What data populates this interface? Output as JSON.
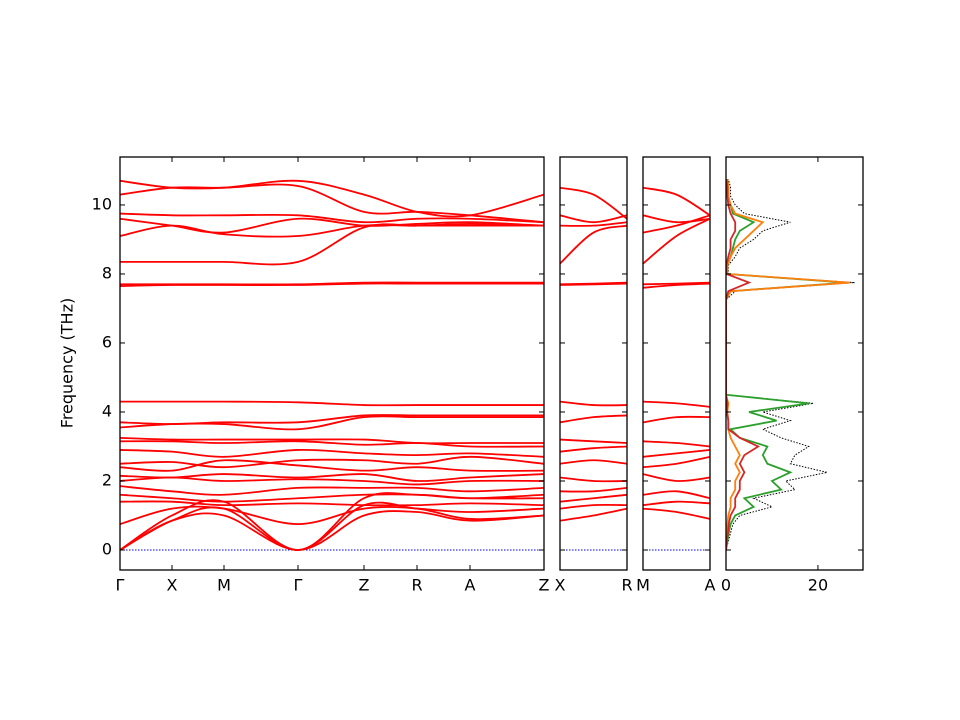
{
  "chart_data": {
    "type": "band_structure",
    "ylabel": "Frequency (THz)",
    "ylim": [
      -0.58,
      11.39
    ],
    "yticks": [
      0,
      2,
      4,
      6,
      8,
      10
    ],
    "baseline": 0,
    "baseline_color": "#0000ff",
    "band_color": "#ff0000",
    "panels": [
      {
        "x": [
          0,
          0.52,
          1.04,
          1.78,
          2.44,
          2.97,
          3.5,
          4.24
        ],
        "xlim": [
          0,
          4.24
        ],
        "xticks": [
          {
            "value": 0,
            "label": "Γ"
          },
          {
            "value": 0.52,
            "label": "X"
          },
          {
            "value": 1.04,
            "label": "M"
          },
          {
            "value": 1.78,
            "label": "Γ"
          },
          {
            "value": 2.44,
            "label": "Z"
          },
          {
            "value": 2.97,
            "label": "R"
          },
          {
            "value": 3.5,
            "label": "A"
          },
          {
            "value": 4.24,
            "label": "Z"
          }
        ],
        "bands": [
          [
            10.7,
            10.5,
            10.5,
            10.7,
            10.3,
            9.8,
            9.7,
            10.3
          ],
          [
            10.3,
            10.5,
            10.5,
            10.55,
            9.8,
            9.8,
            9.7,
            9.5
          ],
          [
            9.75,
            9.7,
            9.7,
            9.7,
            9.5,
            9.6,
            9.6,
            9.5
          ],
          [
            9.6,
            9.4,
            9.2,
            9.6,
            9.4,
            9.45,
            9.5,
            9.4
          ],
          [
            9.1,
            9.4,
            9.15,
            9.1,
            9.4,
            9.4,
            9.45,
            9.4
          ],
          [
            8.35,
            8.35,
            8.35,
            8.35,
            9.35,
            9.4,
            9.4,
            9.4
          ],
          [
            7.7,
            7.7,
            7.7,
            7.7,
            7.75,
            7.75,
            7.75,
            7.75
          ],
          [
            7.65,
            7.68,
            7.68,
            7.68,
            7.72,
            7.72,
            7.72,
            7.72
          ],
          [
            4.3,
            4.3,
            4.3,
            4.28,
            4.2,
            4.2,
            4.2,
            4.2
          ],
          [
            3.7,
            3.65,
            3.7,
            3.7,
            3.9,
            3.9,
            3.9,
            3.9
          ],
          [
            3.55,
            3.65,
            3.65,
            3.5,
            3.85,
            3.85,
            3.85,
            3.85
          ],
          [
            3.25,
            3.2,
            3.2,
            3.2,
            3.2,
            3.1,
            3.1,
            3.1
          ],
          [
            3.15,
            3.15,
            3.1,
            3.15,
            3.05,
            3.1,
            3.0,
            3.0
          ],
          [
            2.9,
            2.85,
            2.7,
            2.9,
            2.8,
            2.75,
            2.8,
            2.7
          ],
          [
            2.5,
            2.55,
            2.4,
            2.6,
            2.6,
            2.5,
            2.7,
            2.5
          ],
          [
            2.4,
            2.3,
            2.6,
            2.45,
            2.3,
            2.4,
            2.3,
            2.3
          ],
          [
            2.15,
            2.1,
            2.2,
            2.1,
            2.2,
            2.0,
            2.1,
            2.2
          ],
          [
            2.0,
            2.1,
            2.0,
            2.05,
            2.0,
            1.9,
            2.0,
            2.0
          ],
          [
            1.85,
            1.7,
            1.6,
            1.8,
            1.8,
            1.8,
            1.7,
            1.8
          ],
          [
            1.6,
            1.5,
            1.4,
            1.5,
            1.6,
            1.6,
            1.5,
            1.6
          ],
          [
            1.4,
            1.4,
            1.3,
            1.35,
            1.3,
            1.3,
            1.35,
            1.3
          ],
          [
            0.75,
            1.2,
            1.2,
            0.75,
            1.2,
            1.2,
            0.9,
            1.0
          ],
          [
            0,
            1.0,
            1.4,
            0,
            1.5,
            1.6,
            1.5,
            1.5
          ],
          [
            0,
            0.85,
            1.2,
            0,
            1.3,
            1.2,
            1.1,
            1.2
          ],
          [
            0,
            0.85,
            1.0,
            0,
            1.0,
            1.1,
            0.85,
            1.0
          ]
        ]
      },
      {
        "x": [
          0,
          0.335,
          0.67
        ],
        "xlim": [
          0,
          0.67
        ],
        "xticks": [
          {
            "value": 0,
            "label": "X"
          },
          {
            "value": 0.67,
            "label": "R"
          }
        ],
        "bands": [
          [
            10.5,
            10.3,
            9.6
          ],
          [
            9.7,
            9.5,
            9.7
          ],
          [
            9.4,
            9.4,
            9.5
          ],
          [
            8.3,
            9.2,
            9.4
          ],
          [
            7.7,
            7.72,
            7.75
          ],
          [
            7.68,
            7.7,
            7.72
          ],
          [
            4.3,
            4.2,
            4.2
          ],
          [
            3.7,
            3.85,
            3.9
          ],
          [
            3.2,
            3.15,
            3.1
          ],
          [
            2.85,
            2.95,
            3.0
          ],
          [
            2.5,
            2.6,
            2.5
          ],
          [
            2.1,
            2.0,
            2.0
          ],
          [
            1.7,
            1.7,
            1.8
          ],
          [
            1.4,
            1.5,
            1.6
          ],
          [
            1.2,
            1.3,
            1.3
          ],
          [
            0.85,
            1.0,
            1.2
          ]
        ]
      },
      {
        "x": [
          0,
          0.335,
          0.67
        ],
        "xlim": [
          0,
          0.67
        ],
        "xticks": [
          {
            "value": 0,
            "label": "M"
          },
          {
            "value": 0.67,
            "label": "A"
          }
        ],
        "bands": [
          [
            10.5,
            10.3,
            9.7
          ],
          [
            9.7,
            9.5,
            9.6
          ],
          [
            9.2,
            9.4,
            9.7
          ],
          [
            8.3,
            9.1,
            9.6
          ],
          [
            7.7,
            7.72,
            7.75
          ],
          [
            7.6,
            7.68,
            7.72
          ],
          [
            4.3,
            4.25,
            4.15
          ],
          [
            3.7,
            3.85,
            3.85
          ],
          [
            3.15,
            3.1,
            3.0
          ],
          [
            2.7,
            2.8,
            2.9
          ],
          [
            2.4,
            2.5,
            2.7
          ],
          [
            2.2,
            2.0,
            2.1
          ],
          [
            1.6,
            1.7,
            1.5
          ],
          [
            1.3,
            1.4,
            1.35
          ],
          [
            1.2,
            1.1,
            0.9
          ]
        ]
      }
    ],
    "dos": {
      "xlim": [
        0,
        29.8
      ],
      "xticks": [
        0,
        20
      ],
      "frequencies": [
        0,
        0.25,
        0.5,
        0.75,
        1,
        1.25,
        1.5,
        1.75,
        2,
        2.25,
        2.5,
        2.75,
        3,
        3.25,
        3.5,
        3.75,
        4,
        4.25,
        4.5,
        4.75,
        5,
        5.25,
        5.5,
        5.75,
        6,
        6.25,
        6.5,
        6.75,
        7,
        7.25,
        7.5,
        7.75,
        8,
        8.25,
        8.5,
        8.75,
        9,
        9.25,
        9.5,
        9.75,
        10,
        10.25,
        10.5,
        10.75
      ],
      "series": [
        {
          "color": "#000000",
          "style": "dotted",
          "values": [
            0,
            0.5,
            1,
            1.5,
            3,
            10,
            6,
            15,
            13,
            22,
            14,
            15,
            18,
            12,
            8,
            14,
            8,
            19,
            0,
            0,
            0,
            0,
            0,
            0,
            0,
            0,
            0,
            0,
            0,
            0,
            2,
            28,
            0.5,
            0.5,
            2,
            3,
            6,
            8,
            14,
            4,
            2,
            1,
            1,
            0.5
          ]
        },
        {
          "color": "#2ca02c",
          "style": "solid",
          "values": [
            0,
            0.3,
            0.6,
            1,
            2,
            6,
            4,
            12,
            10,
            14,
            9,
            8,
            9,
            3,
            1,
            11,
            5,
            18,
            0,
            0,
            0,
            0,
            0,
            0,
            0,
            0,
            0,
            0,
            0,
            0,
            1,
            26,
            0.3,
            0.3,
            1,
            1.5,
            2,
            3,
            6,
            1.5,
            1,
            0.5,
            0.5,
            0.3
          ]
        },
        {
          "color": "#ff7f0e",
          "style": "solid",
          "values": [
            0,
            0.1,
            0.2,
            0.3,
            0.5,
            1,
            1,
            2,
            2,
            3,
            2,
            3,
            2,
            1,
            0.5,
            0.5,
            0.3,
            0.5,
            0,
            0,
            0,
            0,
            0,
            0,
            0,
            0,
            0,
            0,
            0,
            0,
            1,
            27,
            0.3,
            0.3,
            1,
            2,
            4,
            6,
            8,
            2,
            1,
            0.5,
            0.5,
            0.3
          ]
        },
        {
          "color": "#d62728",
          "style": "solid",
          "values": [
            0,
            0.2,
            0.4,
            0.6,
            1,
            2,
            2,
            3,
            3,
            4,
            3,
            4,
            7,
            3,
            0.5,
            0.5,
            0.2,
            0.3,
            0,
            0,
            0,
            0,
            0,
            0,
            0,
            0,
            0,
            0,
            0,
            0,
            0.5,
            5,
            0.1,
            0.1,
            0.5,
            1,
            1,
            2,
            2,
            1,
            0.5,
            0.3,
            0.3,
            0.1
          ]
        }
      ]
    }
  }
}
